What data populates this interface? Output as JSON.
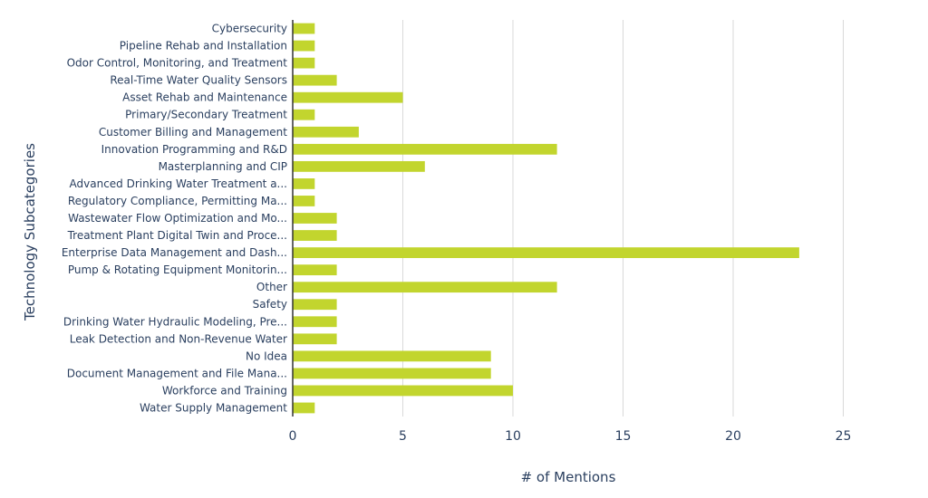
{
  "chart_data": {
    "type": "bar",
    "orientation": "horizontal",
    "title": "",
    "xlabel": "# of Mentions",
    "ylabel": "Technology Subcategories",
    "bar_color": "#c2d52e",
    "grid_color": "#d9d9d9",
    "axis_color": "#2a3f5f",
    "xlim": [
      0,
      28
    ],
    "xticks": [
      0,
      5,
      10,
      15,
      20,
      25
    ],
    "grid": true,
    "categories": [
      "Cybersecurity",
      "Pipeline Rehab and Installation",
      "Odor Control, Monitoring, and Treatment",
      "Real-Time Water Quality Sensors",
      "Asset Rehab and Maintenance",
      "Primary/Secondary Treatment",
      "Customer Billing and Management",
      "Innovation Programming and R&D",
      "Masterplanning and CIP",
      "Advanced Drinking Water Treatment a...",
      "Regulatory Compliance, Permitting Ma...",
      "Wastewater Flow Optimization and Mo...",
      "Treatment Plant Digital Twin and Proce...",
      "Enterprise Data Management and Dash...",
      "Pump & Rotating Equipment Monitorin...",
      "Other",
      "Safety",
      "Drinking Water Hydraulic Modeling, Pre...",
      "Leak Detection and Non-Revenue Water",
      "No Idea",
      "Document Management and File Mana...",
      "Workforce and Training",
      "Water Supply Management"
    ],
    "values": [
      1,
      1,
      1,
      2,
      5,
      1,
      3,
      12,
      6,
      1,
      1,
      2,
      2,
      23,
      2,
      12,
      2,
      2,
      2,
      9,
      9,
      10,
      1
    ]
  }
}
